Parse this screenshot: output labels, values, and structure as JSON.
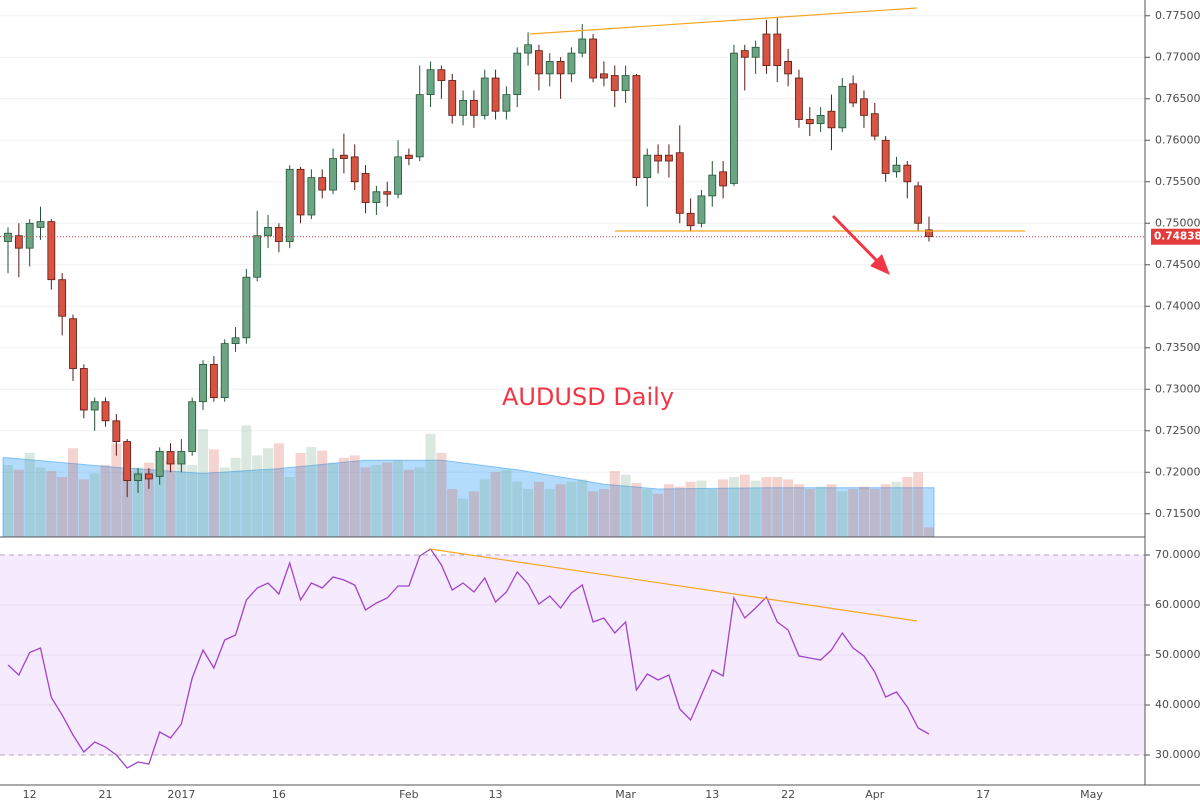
{
  "chart_data": {
    "type": "candlestick",
    "annotation": "AUDUSD Daily",
    "categories": [
      null,
      null,
      "12",
      null,
      null,
      null,
      null,
      null,
      null,
      "21",
      null,
      null,
      null,
      null,
      null,
      null,
      "2017",
      null,
      null,
      null,
      null,
      null,
      null,
      null,
      null,
      "16",
      null,
      null,
      null,
      null,
      null,
      null,
      null,
      null,
      null,
      null,
      null,
      "Feb",
      null,
      null,
      null,
      null,
      null,
      null,
      null,
      "13",
      null,
      null,
      null,
      null,
      null,
      null,
      null,
      null,
      null,
      null,
      null,
      "Mar",
      null,
      null,
      null,
      null,
      null,
      null,
      null,
      "13",
      null,
      null,
      null,
      null,
      null,
      null,
      "22",
      null,
      null,
      null,
      null,
      null,
      null,
      null,
      "Apr",
      null,
      null,
      null,
      null,
      null,
      null,
      null,
      null,
      null,
      "17",
      null,
      null,
      null,
      null,
      null,
      null,
      null,
      null,
      null,
      "May"
    ],
    "open": [
      0.7478,
      0.7485,
      0.747,
      0.7495,
      0.7502,
      0.7432,
      0.7385,
      0.7325,
      0.7275,
      0.7285,
      0.7262,
      0.7237,
      0.719,
      0.7198,
      0.7195,
      0.7225,
      0.721,
      0.7225,
      0.7285,
      0.733,
      0.729,
      0.7355,
      0.7362,
      0.7435,
      0.7485,
      0.7495,
      0.7478,
      0.7565,
      0.751,
      0.7555,
      0.754,
      0.7582,
      0.758,
      0.756,
      0.7525,
      0.7538,
      0.7535,
      0.7582,
      0.758,
      0.7655,
      0.7685,
      0.7672,
      0.763,
      0.7648,
      0.763,
      0.7675,
      0.7635,
      0.7655,
      0.7705,
      0.7708,
      0.768,
      0.7695,
      0.768,
      0.7705,
      0.7722,
      0.768,
      0.7678,
      0.766,
      0.7678,
      0.7555,
      0.7582,
      0.7582,
      0.7585,
      0.7512,
      0.75,
      0.7533,
      0.7562,
      0.7548,
      0.7708,
      0.77,
      0.7728,
      0.7728,
      0.7695,
      0.7675,
      0.7625,
      0.762,
      0.7635,
      0.7615,
      0.7668,
      0.765,
      0.7632,
      0.76,
      0.7562,
      0.757,
      0.7545,
      0.7492,
      null,
      null,
      null,
      null,
      null,
      null,
      null,
      null,
      null,
      null,
      null,
      null,
      null,
      null,
      null
    ],
    "high": [
      0.7495,
      0.75,
      0.7505,
      0.752,
      0.7505,
      0.744,
      0.739,
      0.733,
      0.729,
      0.729,
      0.727,
      0.724,
      0.7205,
      0.7205,
      0.723,
      0.7235,
      0.724,
      0.729,
      0.7335,
      0.734,
      0.736,
      0.7375,
      0.7445,
      0.7515,
      0.751,
      0.75,
      0.757,
      0.7568,
      0.7565,
      0.7565,
      0.759,
      0.7608,
      0.7595,
      0.757,
      0.7545,
      0.755,
      0.76,
      0.759,
      0.769,
      0.7695,
      0.769,
      0.768,
      0.766,
      0.766,
      0.7685,
      0.7685,
      0.7665,
      0.7712,
      0.773,
      0.7715,
      0.7705,
      0.77,
      0.7712,
      0.774,
      0.7728,
      0.7695,
      0.769,
      0.769,
      0.768,
      0.759,
      0.7595,
      0.7595,
      0.7618,
      0.753,
      0.754,
      0.7575,
      0.7575,
      0.7715,
      0.7715,
      0.772,
      0.7745,
      0.7748,
      0.771,
      0.7685,
      0.764,
      0.764,
      0.7655,
      0.7675,
      0.7678,
      0.766,
      0.7645,
      0.7605,
      0.758,
      0.7575,
      0.755,
      0.7508,
      null,
      null,
      null,
      null,
      null,
      null,
      null,
      null,
      null,
      null,
      null,
      null,
      null,
      null,
      null
    ],
    "low": [
      0.744,
      0.7435,
      0.7448,
      0.748,
      0.742,
      0.7365,
      0.731,
      0.7265,
      0.725,
      0.7255,
      0.722,
      0.717,
      0.7175,
      0.718,
      0.7185,
      0.72,
      0.72,
      0.722,
      0.7275,
      0.7285,
      0.7285,
      0.7345,
      0.7355,
      0.743,
      0.747,
      0.7465,
      0.747,
      0.75,
      0.7505,
      0.753,
      0.7535,
      0.756,
      0.754,
      0.7512,
      0.751,
      0.752,
      0.753,
      0.757,
      0.7575,
      0.764,
      0.765,
      0.762,
      0.7618,
      0.7615,
      0.7625,
      0.7625,
      0.7625,
      0.764,
      0.769,
      0.766,
      0.7665,
      0.765,
      0.767,
      0.77,
      0.767,
      0.7665,
      0.764,
      0.7645,
      0.7545,
      0.752,
      0.756,
      0.7555,
      0.75,
      0.749,
      0.7495,
      0.752,
      0.753,
      0.7545,
      0.766,
      0.768,
      0.768,
      0.767,
      0.7665,
      0.7615,
      0.7605,
      0.761,
      0.7588,
      0.761,
      0.764,
      0.7615,
      0.76,
      0.755,
      0.7555,
      0.753,
      0.749,
      0.7478,
      null,
      null,
      null,
      null,
      null,
      null,
      null,
      null,
      null,
      null,
      null,
      null,
      null,
      null,
      null
    ],
    "close": [
      0.7488,
      0.747,
      0.75,
      0.7502,
      0.7432,
      0.7388,
      0.7325,
      0.7275,
      0.7285,
      0.7262,
      0.7237,
      0.719,
      0.7198,
      0.7192,
      0.7225,
      0.721,
      0.7225,
      0.7285,
      0.733,
      0.729,
      0.7355,
      0.7362,
      0.7435,
      0.7485,
      0.7495,
      0.7478,
      0.7565,
      0.751,
      0.7555,
      0.754,
      0.7578,
      0.7578,
      0.755,
      0.7525,
      0.7538,
      0.7535,
      0.758,
      0.7578,
      0.7655,
      0.7685,
      0.7672,
      0.763,
      0.7648,
      0.763,
      0.7675,
      0.7635,
      0.7655,
      0.7705,
      0.7715,
      0.768,
      0.7695,
      0.768,
      0.7705,
      0.7722,
      0.7675,
      0.7675,
      0.766,
      0.7678,
      0.7555,
      0.7582,
      0.7575,
      0.7575,
      0.7512,
      0.7497,
      0.7533,
      0.7558,
      0.7545,
      0.7705,
      0.77,
      0.7712,
      0.769,
      0.769,
      0.768,
      0.7625,
      0.762,
      0.763,
      0.7615,
      0.7665,
      0.7645,
      0.763,
      0.7605,
      0.756,
      0.757,
      0.755,
      0.75,
      0.7484,
      null,
      null,
      null,
      null,
      null,
      null,
      null,
      null,
      null,
      null,
      null,
      null,
      null,
      null,
      null
    ],
    "up_color": "#6ba583",
    "down_color": "#d75442",
    "ylim": [
      0.7122,
      0.7769
    ],
    "yticks": [
      {
        "value": 0.715,
        "label": "0.71500"
      },
      {
        "value": 0.72,
        "label": "0.72000"
      },
      {
        "value": 0.725,
        "label": "0.72500"
      },
      {
        "value": 0.73,
        "label": "0.73000"
      },
      {
        "value": 0.735,
        "label": "0.73500"
      },
      {
        "value": 0.74,
        "label": "0.74000"
      },
      {
        "value": 0.745,
        "label": "0.74500"
      },
      {
        "value": 0.75,
        "label": "0.75000"
      },
      {
        "value": 0.755,
        "label": "0.75500"
      },
      {
        "value": 0.76,
        "label": "0.76000"
      },
      {
        "value": 0.765,
        "label": "0.76500"
      },
      {
        "value": 0.77,
        "label": "0.77000"
      },
      {
        "value": 0.775,
        "label": "0.77500"
      }
    ],
    "grid": true,
    "last_price": 0.74838,
    "volume": [
      60,
      56,
      70,
      58,
      55,
      50,
      74,
      48,
      53,
      60,
      78,
      55,
      58,
      62,
      72,
      64,
      68,
      60,
      90,
      73,
      58,
      66,
      93,
      68,
      74,
      78,
      50,
      70,
      75,
      72,
      62,
      66,
      68,
      58,
      60,
      62,
      64,
      56,
      58,
      86,
      70,
      40,
      32,
      38,
      48,
      54,
      56,
      46,
      40,
      46,
      40,
      44,
      46,
      48,
      38,
      40,
      55,
      52,
      45,
      40,
      36,
      44,
      42,
      46,
      47,
      40,
      48,
      50,
      52,
      47,
      50,
      50,
      48,
      44,
      40,
      42,
      44,
      38,
      40,
      42,
      40,
      44,
      46,
      50,
      54,
      8,
      null,
      null,
      null,
      null,
      null,
      null,
      null,
      null,
      null,
      null,
      null,
      null,
      null,
      null,
      null
    ],
    "volume_ma": [
      66,
      65.2,
      64.4,
      63.6,
      62.8,
      62,
      61.2,
      60.4,
      59.6,
      58.8,
      58,
      57.4,
      56.8,
      56.1,
      55.5,
      54.9,
      54.3,
      53.6,
      53,
      53.6,
      54.1,
      54.7,
      55.3,
      55.9,
      56.4,
      57,
      57.9,
      58.8,
      59.6,
      60.5,
      61.4,
      62.3,
      63.1,
      64,
      64,
      64,
      64,
      64,
      64,
      64,
      64,
      62.9,
      61.7,
      60.6,
      59.4,
      58.3,
      57.1,
      56,
      54.5,
      53,
      51.5,
      50,
      48.5,
      47,
      45.5,
      44,
      43.2,
      42.4,
      41.6,
      40.8,
      40,
      40.1,
      40.2,
      40.3,
      40.4,
      40.5,
      40.6,
      40.7,
      40.8,
      40.9,
      41,
      41,
      41,
      41,
      41,
      41,
      41,
      41,
      41,
      41,
      41,
      41,
      41,
      41,
      41,
      41,
      null,
      null,
      null,
      null,
      null,
      null,
      null,
      null,
      null,
      null,
      null,
      null,
      null,
      null,
      null
    ],
    "volume_ylim": [
      0,
      100
    ],
    "volume_color": "#42a5f5",
    "rsi": {
      "color": "#a044c9",
      "values": [
        48,
        46,
        50.5,
        51.4,
        41.5,
        38,
        34,
        30.6,
        32.6,
        31.6,
        30,
        27.4,
        28.6,
        28.2,
        34.6,
        33.4,
        36.2,
        45.4,
        51,
        47.4,
        53,
        54,
        61,
        63.4,
        64.4,
        62.2,
        68.4,
        61,
        64.4,
        63.4,
        65.6,
        65,
        64,
        59,
        60.4,
        61.4,
        63.8,
        63.8,
        69.8,
        71.2,
        68,
        63,
        64.4,
        62.6,
        65.4,
        60.6,
        62.6,
        66.6,
        64.2,
        60.2,
        61.8,
        59.4,
        62.4,
        64,
        56.6,
        57.4,
        54.4,
        56.6,
        43,
        46.2,
        45,
        46,
        39.2,
        37,
        42,
        47,
        45.8,
        61.4,
        57.4,
        59.4,
        61.6,
        56.6,
        55,
        49.8,
        49.4,
        49,
        51,
        54.4,
        51.4,
        49.8,
        46.6,
        41.6,
        42.6,
        39.6,
        35.4,
        34.2,
        null,
        null,
        null,
        null,
        null,
        null,
        null,
        null,
        null,
        null,
        null,
        null,
        null,
        null,
        null
      ],
      "ylim": [
        24,
        73.6
      ],
      "yticks": [
        {
          "value": 30,
          "label": "30.0000"
        },
        {
          "value": 40,
          "label": "40.0000"
        },
        {
          "value": 50,
          "label": "50.0000"
        },
        {
          "value": 60,
          "label": "60.0000"
        },
        {
          "value": 70,
          "label": "70.0000"
        }
      ]
    }
  }
}
